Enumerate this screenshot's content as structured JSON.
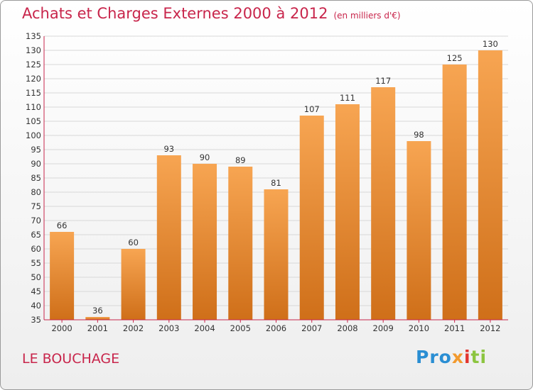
{
  "header": {
    "title": "Achats et Charges Externes 2000 à 2012",
    "unit": "(en milliers d'€)"
  },
  "footer": {
    "commune": "LE BOUCHAGE",
    "brand": "Proxiti"
  },
  "colors": {
    "title": "#c8254b",
    "bar_light": "#f7a552",
    "bar_dark": "#cf6f19",
    "axis": "#c8254b",
    "grid": "#d8d8d8"
  },
  "chart_data": {
    "type": "bar",
    "categories": [
      "2000",
      "2001",
      "2002",
      "2003",
      "2004",
      "2005",
      "2006",
      "2007",
      "2008",
      "2009",
      "2010",
      "2011",
      "2012"
    ],
    "values": [
      66,
      36,
      60,
      93,
      90,
      89,
      81,
      107,
      111,
      117,
      98,
      125,
      130
    ],
    "ylim": [
      35,
      135
    ],
    "yticks": [
      35,
      40,
      45,
      50,
      55,
      60,
      65,
      70,
      75,
      80,
      85,
      90,
      95,
      100,
      105,
      110,
      115,
      120,
      125,
      130,
      135
    ],
    "grid": true,
    "data_labels": true
  }
}
